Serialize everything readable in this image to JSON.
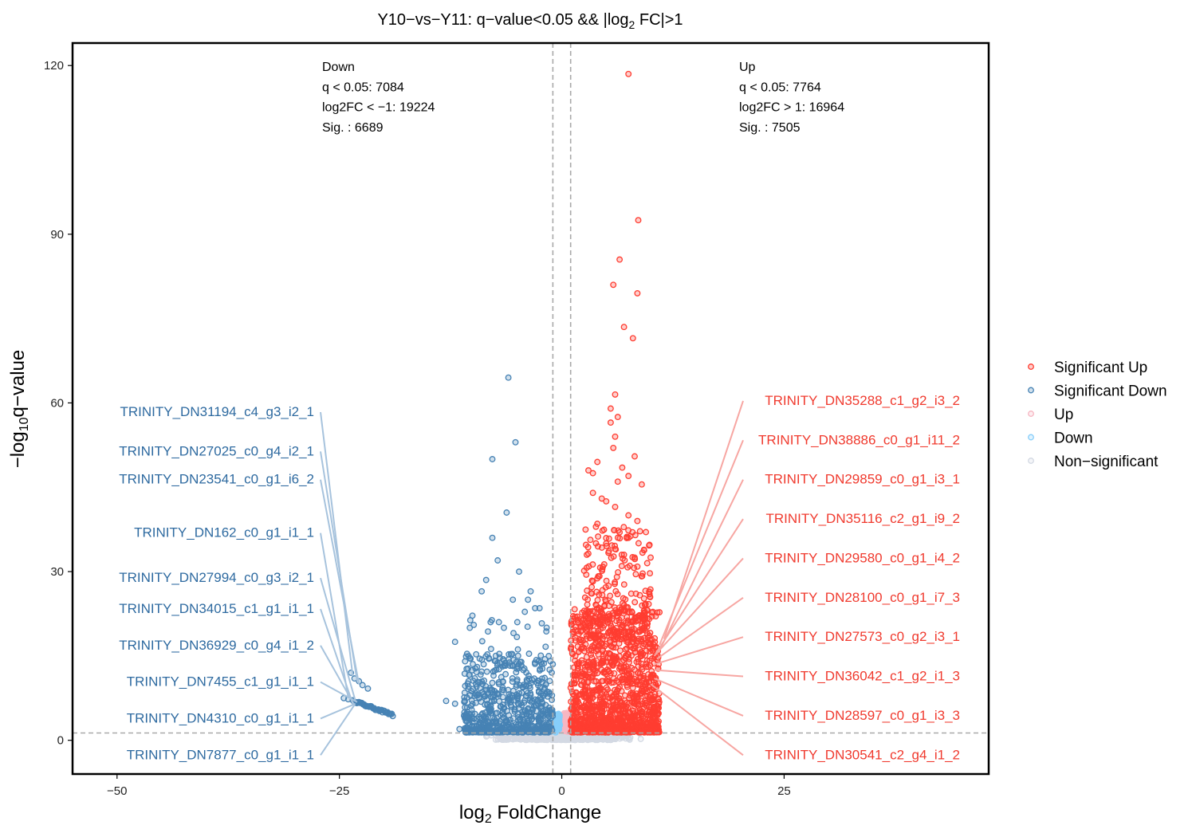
{
  "chart_data": {
    "type": "scatter",
    "title_parts": {
      "prefix": "Y10−vs−Y11: q−value<0.05 && |log",
      "sub": "2",
      "suffix": " FC|>1"
    },
    "xlabel_parts": {
      "prefix": "log",
      "sub": "2",
      "suffix": " FoldChange"
    },
    "ylabel_parts": {
      "prefix": "−log",
      "sub": "10",
      "suffix": "q−value"
    },
    "xlim": [
      -55,
      48
    ],
    "ylim": [
      -6,
      124
    ],
    "x_ticks": [
      -50,
      -25,
      0,
      25
    ],
    "x_tick_labels": [
      "−50",
      "−25",
      "0",
      "25"
    ],
    "y_ticks": [
      0,
      30,
      60,
      90,
      120
    ],
    "y_tick_labels": [
      "0",
      "30",
      "60",
      "90",
      "120"
    ],
    "thresholds": {
      "log2fc": [
        -1,
        1
      ],
      "neg_log10_q": 1.3
    },
    "grid": false,
    "legend_position": "right",
    "legend": [
      {
        "key": "sig_up",
        "label": "Significant Up",
        "color": "#ff3d31"
      },
      {
        "key": "sig_down",
        "label": "Significant Down",
        "color": "#4682b4"
      },
      {
        "key": "up",
        "label": "Up",
        "color": "#f7b6c2"
      },
      {
        "key": "down",
        "label": "Down",
        "color": "#87cefa"
      },
      {
        "key": "nonsig",
        "label": "Non−significant",
        "color": "#d3d9e3"
      }
    ],
    "annotations": {
      "down": [
        "Down",
        "q < 0.05: 7084",
        "log2FC < −1: 19224",
        "Sig. : 6689"
      ],
      "up": [
        "Up",
        "q < 0.05: 7764",
        "log2FC > 1: 16964",
        "Sig. : 7505"
      ]
    },
    "down_labels": [
      {
        "text": "TRINITY_DN31194_c4_g3_i2_1",
        "x": -23.5,
        "y": 11.5,
        "label_y": 58.5
      },
      {
        "text": "TRINITY_DN27025_c0_g4_i2_1",
        "x": -23.0,
        "y": 10.5,
        "label_y": 51.5
      },
      {
        "text": "TRINITY_DN23541_c0_g1_i6_2",
        "x": -22.8,
        "y": 10.0,
        "label_y": 46.5
      },
      {
        "text": "TRINITY_DN162_c0_g1_i1_1",
        "x": -24.0,
        "y": 7.5,
        "label_y": 37.0
      },
      {
        "text": "TRINITY_DN27994_c0_g3_i2_1",
        "x": -23.2,
        "y": 7.0,
        "label_y": 29.0
      },
      {
        "text": "TRINITY_DN34015_c1_g1_i1_1",
        "x": -23.5,
        "y": 6.5,
        "label_y": 23.5
      },
      {
        "text": "TRINITY_DN36929_c0_g4_i1_2",
        "x": -23.3,
        "y": 6.2,
        "label_y": 17.0
      },
      {
        "text": "TRINITY_DN7455_c1_g1_i1_1",
        "x": -23.0,
        "y": 6.8,
        "label_y": 10.5
      },
      {
        "text": "TRINITY_DN4310_c0_g1_i1_1",
        "x": -23.2,
        "y": 6.5,
        "label_y": 4.0
      },
      {
        "text": "TRINITY_DN7877_c0_g1_i1_1",
        "x": -23.3,
        "y": 6.3,
        "label_y": -2.5
      }
    ],
    "up_labels": [
      {
        "text": "TRINITY_DN35288_c1_g2_i3_2",
        "x": 11.5,
        "y": 18.0,
        "label_y": 60.5
      },
      {
        "text": "TRINITY_DN38886_c0_g1_i11_2",
        "x": 11.0,
        "y": 17.0,
        "label_y": 53.5
      },
      {
        "text": "TRINITY_DN29859_c0_g1_i3_1",
        "x": 11.0,
        "y": 16.0,
        "label_y": 46.5
      },
      {
        "text": "TRINITY_DN35116_c2_g1_i9_2",
        "x": 10.6,
        "y": 15.5,
        "label_y": 39.5
      },
      {
        "text": "TRINITY_DN29580_c0_g1_i4_2",
        "x": 10.4,
        "y": 15.0,
        "label_y": 32.5
      },
      {
        "text": "TRINITY_DN28100_c0_g1_i7_3",
        "x": 10.7,
        "y": 14.5,
        "label_y": 25.5
      },
      {
        "text": "TRINITY_DN27573_c0_g2_i3_1",
        "x": 10.4,
        "y": 13.5,
        "label_y": 18.5
      },
      {
        "text": "TRINITY_DN36042_c1_g2_i1_3",
        "x": 10.4,
        "y": 12.5,
        "label_y": 11.5
      },
      {
        "text": "TRINITY_DN28597_c0_g1_i3_3",
        "x": 10.4,
        "y": 11.0,
        "label_y": 4.5
      },
      {
        "text": "TRINITY_DN30541_c2_g4_i1_2",
        "x": 10.0,
        "y": 10.0,
        "label_y": -2.5
      }
    ],
    "highlight_points": {
      "sig_up": [
        [
          7.5,
          118.5
        ],
        [
          8.6,
          92.5
        ],
        [
          6.5,
          85.5
        ],
        [
          5.8,
          81.0
        ],
        [
          8.5,
          79.5
        ],
        [
          7.0,
          73.5
        ],
        [
          8.0,
          71.5
        ],
        [
          6.0,
          61.5
        ],
        [
          5.5,
          59.0
        ],
        [
          6.3,
          57.5
        ],
        [
          5.5,
          56.5
        ],
        [
          6.0,
          54.0
        ],
        [
          5.8,
          52.0
        ],
        [
          8.2,
          50.5
        ],
        [
          4.0,
          49.5
        ],
        [
          6.8,
          48.5
        ],
        [
          3.0,
          48.0
        ],
        [
          3.5,
          47.5
        ],
        [
          7.5,
          47.0
        ],
        [
          6.3,
          46.0
        ],
        [
          9.0,
          45.5
        ],
        [
          3.5,
          44.0
        ],
        [
          4.5,
          43.0
        ],
        [
          5.0,
          42.5
        ],
        [
          6.0,
          41.5
        ],
        [
          7.5,
          40.0
        ],
        [
          8.5,
          39.0
        ],
        [
          4.0,
          38.5
        ],
        [
          6.5,
          37.0
        ],
        [
          7.5,
          36.0
        ],
        [
          5.0,
          35.0
        ],
        [
          6.0,
          34.0
        ],
        [
          7.0,
          33.0
        ]
      ],
      "sig_down": [
        [
          -6.0,
          64.5
        ],
        [
          -5.2,
          53.0
        ],
        [
          -7.8,
          50.0
        ],
        [
          -6.2,
          40.5
        ],
        [
          -7.8,
          36.0
        ],
        [
          -7.2,
          32.0
        ],
        [
          -8.5,
          28.5
        ],
        [
          -4.8,
          30.0
        ],
        [
          -9.0,
          26.5
        ],
        [
          -3.5,
          26.5
        ],
        [
          -5.5,
          25.0
        ],
        [
          -3.8,
          25.0
        ],
        [
          -2.5,
          23.5
        ],
        [
          -3.0,
          23.5
        ],
        [
          -8.0,
          21.0
        ],
        [
          -5.0,
          21.0
        ],
        [
          -12.0,
          17.5
        ],
        [
          -6.5,
          20.0
        ],
        [
          -13.0,
          7.0
        ],
        [
          -12.0,
          6.5
        ],
        [
          -11.5,
          2.0
        ]
      ]
    },
    "down_label_cluster": {
      "x_start": -23.5,
      "x_end": -19.0,
      "y_start": 7.0,
      "y_end": 4.5
    },
    "cluster_points": {
      "sig_down": {
        "x_range": [
          -11,
          -1
        ],
        "y_max_approx": 14
      },
      "sig_up": {
        "x_range": [
          1,
          11
        ],
        "y_max_approx": 22
      }
    }
  }
}
